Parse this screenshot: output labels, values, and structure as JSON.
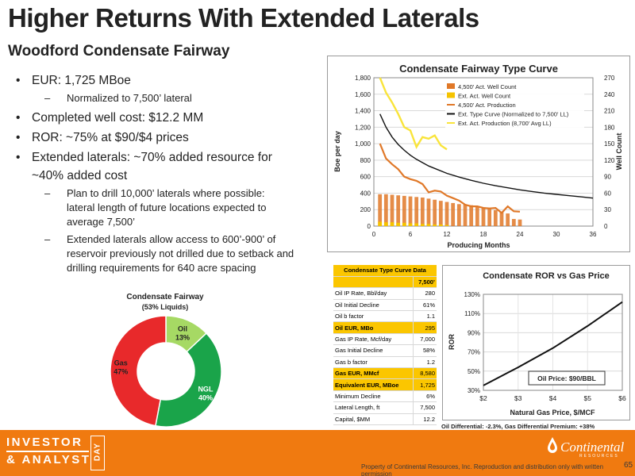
{
  "page": {
    "title": "Higher Returns With Extended Laterals",
    "subtitle": "Woodford Condensate Fairway",
    "footer_text": "Property of Continental Resources, Inc. Reproduction and distribution only with written permission",
    "page_number": "65",
    "logo_left": {
      "line1": "INVESTOR",
      "line2": "& ANALYST",
      "vertical": "DAY"
    },
    "logo_right": {
      "name": "Continental",
      "sub": "RESOURCES"
    }
  },
  "bullets": [
    {
      "level": 1,
      "text": "EUR: 1,725 MBoe"
    },
    {
      "level": 2,
      "text": "Normalized to 7,500’ lateral"
    },
    {
      "level": 1,
      "text": "Completed well cost: $12.2 MM"
    },
    {
      "level": 1,
      "text": "ROR: ~75% at $90/$4 prices"
    },
    {
      "level": 1,
      "text": "Extended laterals: ~70% added resource for ~40% added cost"
    },
    {
      "level": 2,
      "text": "Plan to drill 10,000’ laterals where possible: lateral length of future locations expected to average 7,500’"
    },
    {
      "level": 2,
      "text": "Extended laterals allow access to 600’-900’ of reservoir previously not drilled due to setback and drilling requirements for 640 acre spacing"
    }
  ],
  "table": {
    "title": "Condensate Type Curve Data",
    "column": "7,500’",
    "rows": [
      {
        "label": "Oil IP Rate, Bbl/day",
        "value": "280",
        "hl": false
      },
      {
        "label": "Oil Initial Decline",
        "value": "61%",
        "hl": false
      },
      {
        "label": "Oil b factor",
        "value": "1.1",
        "hl": false
      },
      {
        "label": "Oil EUR, MBo",
        "value": "295",
        "hl": true
      },
      {
        "label": "Gas IP Rate, Mcf/day",
        "value": "7,000",
        "hl": false
      },
      {
        "label": "Gas Initial Decline",
        "value": "58%",
        "hl": false
      },
      {
        "label": "Gas b factor",
        "value": "1.2",
        "hl": false
      },
      {
        "label": "Gas EUR, MMcf",
        "value": "8,580",
        "hl": true
      },
      {
        "label": "Equivalent EUR, MBoe",
        "value": "1,725",
        "hl": true
      },
      {
        "label": "Minimum Decline",
        "value": "6%",
        "hl": false
      },
      {
        "label": "Lateral Length, ft",
        "value": "7,500",
        "hl": false
      },
      {
        "label": "Capital, $MM",
        "value": "12.2",
        "hl": false
      }
    ]
  },
  "note": "Oil Differential: -2.3%, Gas Differential Premium: +38%",
  "colors": {
    "orange": "#e07828",
    "yellow": "#f5c300",
    "black": "#111111",
    "lightyellow": "#f9e43a",
    "oil": "#a6d964",
    "ngl": "#1aa44a",
    "gas": "#e8292b",
    "brand": "#f07a10"
  },
  "chart_data": [
    {
      "type": "line",
      "title": "Condensate Fairway Type Curve",
      "xlabel": "Producing Months",
      "ylabel": "Boe per day",
      "y2label": "Well Count",
      "xlim": [
        0,
        36
      ],
      "ylim": [
        0,
        1800
      ],
      "y2lim": [
        0,
        270
      ],
      "xticks": [
        0,
        6,
        12,
        18,
        24,
        30,
        36
      ],
      "yticks": [
        0,
        200,
        400,
        600,
        800,
        1000,
        1200,
        1400,
        1600,
        1800
      ],
      "y2ticks": [
        0,
        30,
        60,
        90,
        120,
        150,
        180,
        210,
        240,
        270
      ],
      "legend_position": "top-right",
      "series": [
        {
          "name": "4,500’ Act. Well Count",
          "kind": "bar",
          "axis": "y2",
          "x": [
            1,
            2,
            3,
            4,
            5,
            6,
            7,
            8,
            9,
            10,
            11,
            12,
            13,
            14,
            15,
            16,
            17,
            18,
            19,
            20,
            21,
            22,
            23,
            24
          ],
          "y": [
            58,
            58,
            57,
            56,
            55,
            54,
            53,
            52,
            50,
            48,
            46,
            44,
            42,
            40,
            39,
            38,
            36,
            33,
            31,
            29,
            26,
            23,
            13,
            12
          ]
        },
        {
          "name": "Ext. Act. Well Count",
          "kind": "bar",
          "axis": "y2",
          "x": [
            1,
            2,
            3,
            4,
            5,
            6,
            7,
            8,
            9,
            10,
            11,
            12
          ],
          "y": [
            8,
            7,
            7,
            6,
            6,
            5,
            5,
            4,
            4,
            3,
            3,
            2
          ]
        },
        {
          "name": "4,500’ Act. Production",
          "kind": "line",
          "axis": "y",
          "x": [
            1,
            2,
            3,
            4,
            5,
            6,
            7,
            8,
            9,
            10,
            11,
            12,
            13,
            14,
            15,
            16,
            17,
            18,
            19,
            20,
            21,
            22,
            23,
            24
          ],
          "y": [
            1000,
            820,
            750,
            690,
            600,
            570,
            550,
            510,
            410,
            430,
            420,
            370,
            340,
            310,
            260,
            240,
            240,
            220,
            215,
            220,
            160,
            240,
            180,
            175
          ]
        },
        {
          "name": "Ext. Type Curve (Normalized to 7,500’ LL)",
          "kind": "line",
          "axis": "y",
          "x": [
            1,
            2,
            3,
            4,
            5,
            6,
            7,
            8,
            9,
            10,
            12,
            14,
            16,
            18,
            20,
            22,
            24,
            26,
            28,
            30,
            32,
            34,
            36
          ],
          "y": [
            1360,
            1200,
            1080,
            990,
            920,
            860,
            810,
            770,
            730,
            700,
            640,
            595,
            555,
            520,
            490,
            465,
            440,
            420,
            400,
            385,
            370,
            355,
            340
          ]
        },
        {
          "name": "Ext. Act. Production (8,700’ Avg LL)",
          "kind": "line",
          "axis": "y",
          "x": [
            1,
            2,
            3,
            4,
            5,
            6,
            7,
            8,
            9,
            10,
            11,
            12
          ],
          "y": [
            1800,
            1620,
            1500,
            1360,
            1200,
            1160,
            960,
            1080,
            1060,
            1100,
            980,
            930
          ]
        }
      ]
    },
    {
      "type": "pie",
      "title": "Condensate Fairway",
      "subtitle": "(53% Liquids)",
      "slices": [
        {
          "label": "Oil",
          "value": 13
        },
        {
          "label": "NGL",
          "value": 40
        },
        {
          "label": "Gas",
          "value": 47
        }
      ]
    },
    {
      "type": "line",
      "title": "Condensate ROR vs Gas Price",
      "xlabel": "Natural Gas Price, $/MCF",
      "ylabel": "ROR",
      "xlim": [
        2,
        6
      ],
      "ylim": [
        30,
        130
      ],
      "xticks": [
        2,
        3,
        4,
        5,
        6
      ],
      "xticklabels": [
        "$2",
        "$3",
        "$4",
        "$5",
        "$6"
      ],
      "yticks": [
        30,
        50,
        70,
        90,
        110,
        130
      ],
      "yticklabels": [
        "30%",
        "50%",
        "70%",
        "90%",
        "110%",
        "130%"
      ],
      "annotation": "Oil Price: $90/BBL",
      "series": [
        {
          "name": "",
          "x": [
            2,
            3,
            4,
            5,
            6
          ],
          "y": [
            35,
            54,
            74,
            97,
            122
          ]
        }
      ]
    }
  ]
}
